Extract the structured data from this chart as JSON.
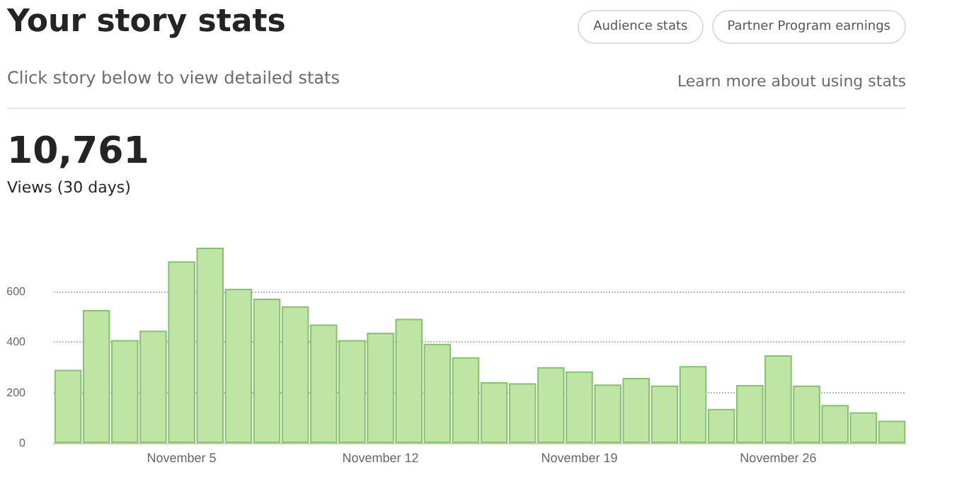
{
  "chart_data": {
    "type": "bar",
    "title": "Your story stats",
    "subtitle": "Click story below to view detailed stats",
    "annotations": [
      "Audience stats",
      "Partner Program earnings",
      "Learn more about using stats",
      "10,761",
      "Views (30 days)"
    ],
    "categories": [
      null,
      null,
      null,
      null,
      "November 5",
      null,
      null,
      null,
      null,
      null,
      null,
      "November 12",
      null,
      null,
      null,
      null,
      null,
      null,
      "November 19",
      null,
      null,
      null,
      null,
      null,
      null,
      "November 26",
      null,
      null,
      null,
      null
    ],
    "values": [
      290,
      527,
      408,
      445,
      720,
      774,
      611,
      572,
      542,
      470,
      408,
      437,
      492,
      393,
      340,
      241,
      237,
      301,
      284,
      232,
      258,
      228,
      305,
      135,
      230,
      348,
      228,
      151,
      122,
      88
    ],
    "color": "#bfe5a5",
    "ylim": [
      0,
      774
    ],
    "yticks": [
      0,
      200,
      400,
      600
    ],
    "grid": "y"
  }
}
